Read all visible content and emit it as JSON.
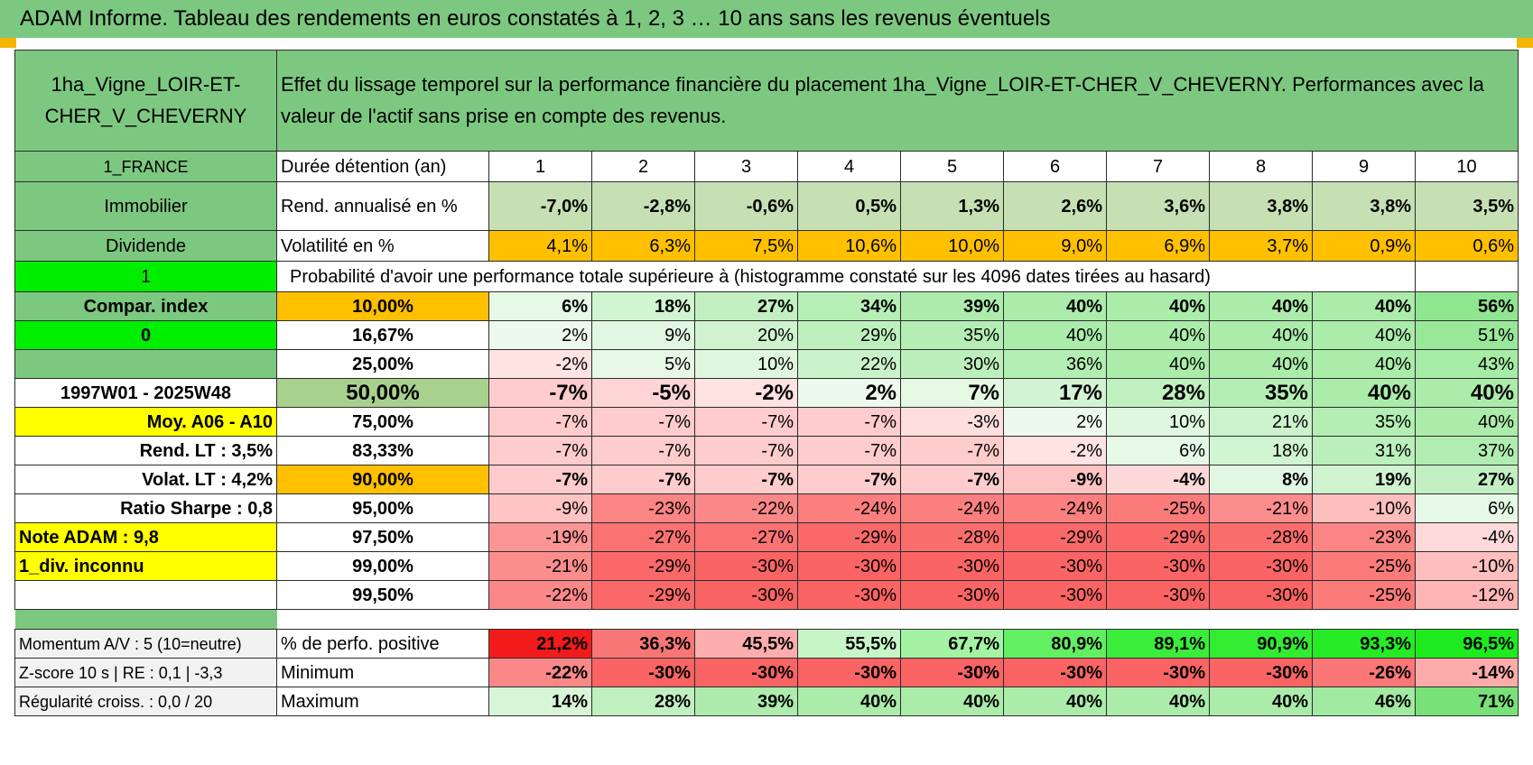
{
  "title": "ADAM Informe. Tableau des rendements en euros constatés à 1, 2, 3 … 10 ans sans les revenus éventuels",
  "asset_name": "1ha_Vigne_LOIR-ET-CHER_V_CHEVERNY",
  "description": "Effet du lissage temporel sur la performance financière du placement 1ha_Vigne_LOIR-ET-CHER_V_CHEVERNY. Performances avec la valeur de l'actif sans prise en compte des revenus.",
  "left": {
    "country": "1_FRANCE",
    "category": "Immobilier",
    "dividend_label": "Dividende",
    "dividend_flag": "1",
    "compar_index": "Compar. index",
    "compar_flag": "0",
    "period": "1997W01 - 2025W48",
    "moy": "Moy. A06 - A10",
    "rend_lt": "Rend. LT :    3,5%",
    "volat_lt": "Volat. LT :    4,2%",
    "sharpe": "Ratio Sharpe :    0,8",
    "note": "Note ADAM : 9,8",
    "div": "1_div. inconnu",
    "momentum": "Momentum A/V : 5 (10=neutre)",
    "zscore": "Z-score 10 s | RE : 0,1 | -3,3",
    "regularite": "Régularité croiss. : 0,0 / 20"
  },
  "labels": {
    "duree": "Durée détention (an)",
    "rend": "Rend. annualisé en %",
    "vol": "Volatilité en %",
    "proba": "Probabilité d'avoir une performance totale supérieure à (histogramme constaté sur les 4096 dates tirées au hasard)",
    "pct_pos": "% de perfo. positive",
    "min": "Minimum",
    "max": "Maximum"
  },
  "years": [
    "1",
    "2",
    "3",
    "4",
    "5",
    "6",
    "7",
    "8",
    "9",
    "10"
  ],
  "rend": [
    "-7,0%",
    "-2,8%",
    "-0,6%",
    "0,5%",
    "1,3%",
    "2,6%",
    "3,6%",
    "3,8%",
    "3,8%",
    "3,5%"
  ],
  "vol": [
    "4,1%",
    "6,3%",
    "7,5%",
    "10,6%",
    "10,0%",
    "9,0%",
    "6,9%",
    "3,7%",
    "0,9%",
    "0,6%"
  ],
  "quantiles": [
    {
      "p": "10,00%",
      "v": [
        "6%",
        "18%",
        "27%",
        "34%",
        "39%",
        "40%",
        "40%",
        "40%",
        "40%",
        "56%"
      ]
    },
    {
      "p": "16,67%",
      "v": [
        "2%",
        "9%",
        "20%",
        "29%",
        "35%",
        "40%",
        "40%",
        "40%",
        "40%",
        "51%"
      ]
    },
    {
      "p": "25,00%",
      "v": [
        "-2%",
        "5%",
        "10%",
        "22%",
        "30%",
        "36%",
        "40%",
        "40%",
        "40%",
        "43%"
      ]
    },
    {
      "p": "50,00%",
      "v": [
        "-7%",
        "-5%",
        "-2%",
        "2%",
        "7%",
        "17%",
        "28%",
        "35%",
        "40%",
        "40%"
      ]
    },
    {
      "p": "75,00%",
      "v": [
        "-7%",
        "-7%",
        "-7%",
        "-7%",
        "-3%",
        "2%",
        "10%",
        "21%",
        "35%",
        "40%"
      ]
    },
    {
      "p": "83,33%",
      "v": [
        "-7%",
        "-7%",
        "-7%",
        "-7%",
        "-7%",
        "-2%",
        "6%",
        "18%",
        "31%",
        "37%"
      ]
    },
    {
      "p": "90,00%",
      "v": [
        "-7%",
        "-7%",
        "-7%",
        "-7%",
        "-7%",
        "-9%",
        "-4%",
        "8%",
        "19%",
        "27%"
      ]
    },
    {
      "p": "95,00%",
      "v": [
        "-9%",
        "-23%",
        "-22%",
        "-24%",
        "-24%",
        "-24%",
        "-25%",
        "-21%",
        "-10%",
        "6%"
      ]
    },
    {
      "p": "97,50%",
      "v": [
        "-19%",
        "-27%",
        "-27%",
        "-29%",
        "-28%",
        "-29%",
        "-29%",
        "-28%",
        "-23%",
        "-4%"
      ]
    },
    {
      "p": "99,00%",
      "v": [
        "-21%",
        "-29%",
        "-30%",
        "-30%",
        "-30%",
        "-30%",
        "-30%",
        "-30%",
        "-25%",
        "-10%"
      ]
    },
    {
      "p": "99,50%",
      "v": [
        "-22%",
        "-29%",
        "-30%",
        "-30%",
        "-30%",
        "-30%",
        "-30%",
        "-30%",
        "-25%",
        "-12%"
      ]
    }
  ],
  "pct_pos": [
    "21,2%",
    "36,3%",
    "45,5%",
    "55,5%",
    "67,7%",
    "80,9%",
    "89,1%",
    "90,9%",
    "93,3%",
    "96,5%"
  ],
  "minimum": [
    "-22%",
    "-30%",
    "-30%",
    "-30%",
    "-30%",
    "-30%",
    "-30%",
    "-30%",
    "-26%",
    "-14%"
  ],
  "maximum": [
    "14%",
    "28%",
    "39%",
    "40%",
    "40%",
    "40%",
    "40%",
    "40%",
    "46%",
    "71%"
  ],
  "colors": {
    "header_green": "#7dc880",
    "bright_green": "#00ee00",
    "yellow": "#ffff00",
    "orange": "#ffc000",
    "red_text": "#e00000"
  }
}
